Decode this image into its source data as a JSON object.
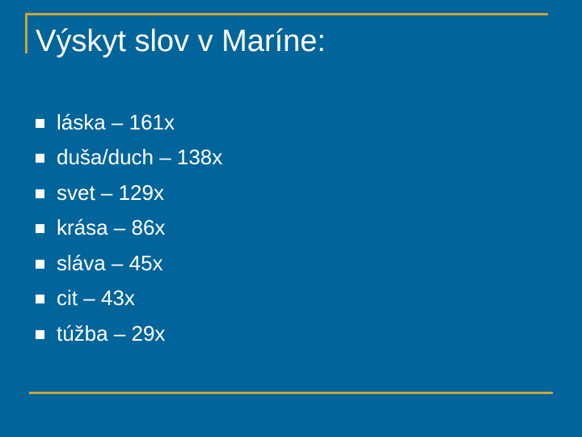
{
  "slide": {
    "title": "Výskyt slov v Maríne:",
    "items": [
      {
        "label": "láska – 161x"
      },
      {
        "label": "duša/duch – 138x"
      },
      {
        "label": "svet – 129x"
      },
      {
        "label": "krása – 86x"
      },
      {
        "label": "sláva – 45x"
      },
      {
        "label": "cit – 43x"
      },
      {
        "label": "túžba – 29x"
      }
    ]
  },
  "colors": {
    "background": "#01649a",
    "accent_line": "#c9a53a",
    "text": "#ffffff"
  }
}
